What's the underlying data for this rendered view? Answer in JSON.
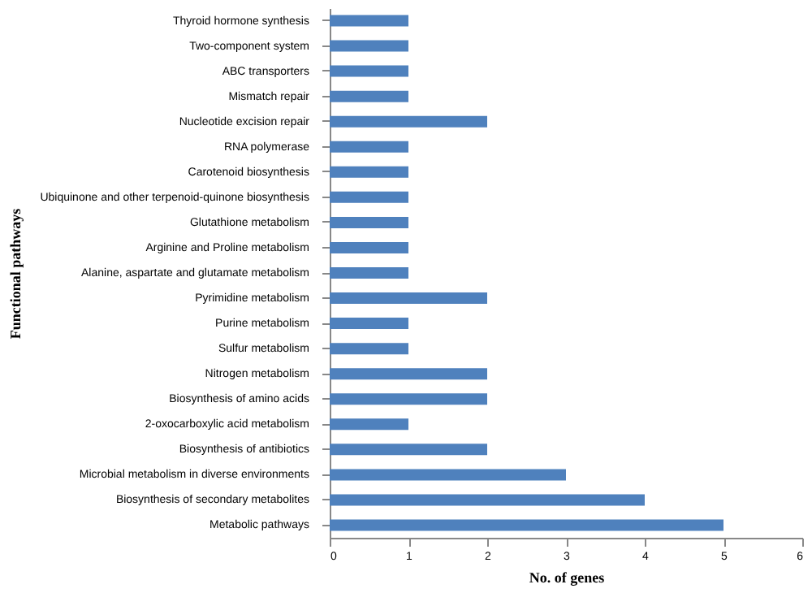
{
  "chart_data": {
    "type": "bar",
    "orientation": "horizontal",
    "xlabel": "No. of genes",
    "ylabel": "Functional pathways",
    "categories": [
      "Thyroid hormone synthesis",
      "Two-component system",
      "ABC transporters",
      "Mismatch repair",
      "Nucleotide excision repair",
      "RNA  polymerase",
      "Carotenoid biosynthesis",
      "Ubiquinone and other terpenoid-quinone biosynthesis",
      "Glutathione metabolism",
      "Arginine and Proline metabolism ",
      "Alanine, aspartate  and glutamate  metabolism",
      "Pyrimidine metabolism",
      "Purine metabolism",
      "Sulfur metabolism",
      "Nitrogen metabolism",
      "Biosynthesis of amino acids",
      "2-oxocarboxylic acid metabolism",
      "Biosynthesis of antibiotics",
      "Microbial metabolism  in diverse environments",
      "Biosynthesis of secondary metabolites",
      "Metabolic pathways"
    ],
    "values": [
      1,
      1,
      1,
      1,
      2,
      1,
      1,
      1,
      1,
      1,
      1,
      2,
      1,
      1,
      2,
      2,
      1,
      2,
      3,
      4,
      5
    ],
    "color": "#4f81bd",
    "xlim": [
      0,
      6
    ],
    "xticks": [
      0,
      1,
      2,
      3,
      4,
      5,
      6
    ],
    "grid": false
  }
}
